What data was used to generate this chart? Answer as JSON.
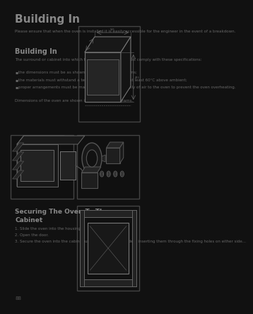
{
  "bg_color": "#111111",
  "box_bg": "#111111",
  "box_edge": "#444444",
  "line_color": "#666666",
  "title_color": "#888888",
  "body_color": "#666666",
  "title": "Building In",
  "title_fontsize": 11,
  "body_fontsize": 4.0,
  "section2_title": "Building In",
  "section2_fontsize": 7,
  "para1": "Please ensure that when the oven is installed it is easily accessible for the engineer in the event of a breakdown.",
  "para2_intro": "The surround or cabinet into which the oven will be built must comply with these specifications:",
  "bullet1": "the dimensions must be as shown in the  relevant diagrams;",
  "bullet2": "the materials must withstand a temperature increase of at least 60°C above ambient;",
  "bullet3": "proper arrangements must be made of a continuous supply of air to the oven to prevent the oven overheating.",
  "para3": "Dimensions of the oven are shown in the relevant diagrams.",
  "section3_title_line1": "Securing The Oven To The",
  "section3_title_line2": "Cabinet",
  "section3_fontsize": 6.5,
  "sec3_b1": "1. Slide the oven into the housing.",
  "sec3_b2": "2. Open the door.",
  "sec3_b3": "3. Secure the oven into the cabinet using the screws provided, inserting them through the fixing holes on either side...",
  "page_number": "88"
}
